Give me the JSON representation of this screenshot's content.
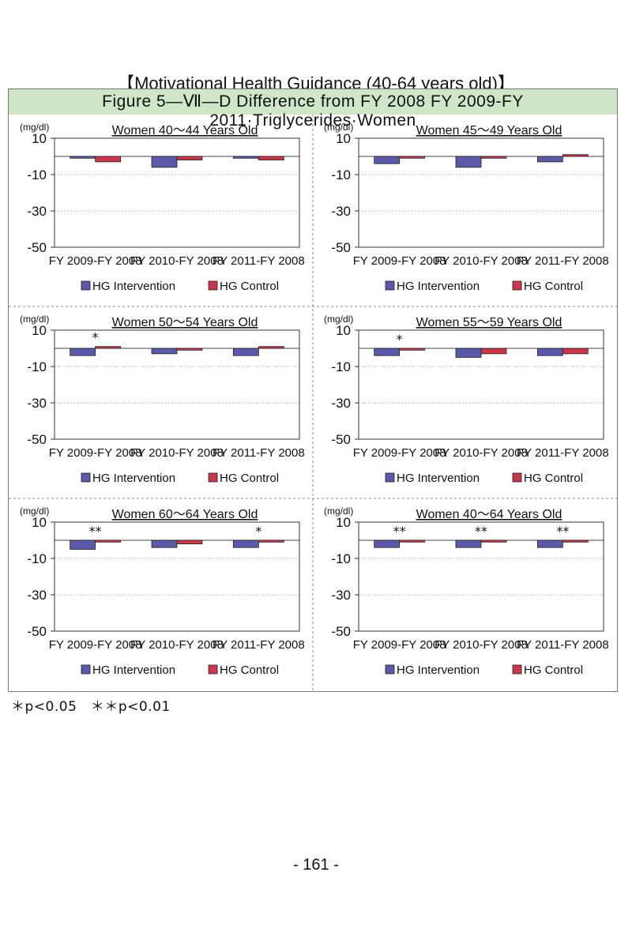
{
  "page_title": "【Motivational Health Guidance (40-64 years old)】",
  "figure_title": "Figure 5—Ⅶ—D  Difference from FY 2008 FY 2009-FY 2011·Triglycerides·Women",
  "footnote": "＊p<0.05　＊＊p<0.01",
  "page_number": "- 161 -",
  "colors": {
    "intervention": "#5a5aa8",
    "control": "#c8384a",
    "figure_header": "#cfe6c9"
  },
  "chart_data": [
    {
      "type": "bar",
      "title": "Women 40～44 Years Old",
      "unit_label": "(mg/dl)",
      "categories": [
        "FY 2009-FY 2008",
        "FY 2010-FY 2008",
        "FY 2011-FY 2008"
      ],
      "series": [
        {
          "name": "HG Intervention",
          "values": [
            -1,
            -6,
            -1
          ]
        },
        {
          "name": "HG Control",
          "values": [
            -3,
            -2,
            -2
          ]
        }
      ],
      "significance": [
        "",
        "",
        ""
      ],
      "ylim": [
        -50,
        10
      ],
      "yticks": [
        10,
        -10,
        -30,
        -50
      ],
      "grid": true,
      "legend_position": "bottom"
    },
    {
      "type": "bar",
      "title": "Women 45～49 Years Old",
      "unit_label": "(mg/dl)",
      "categories": [
        "FY 2009-FY 2008",
        "FY 2010-FY 2008",
        "FY 2011-FY 2008"
      ],
      "series": [
        {
          "name": "HG Intervention",
          "values": [
            -4,
            -6,
            -3
          ]
        },
        {
          "name": "HG Control",
          "values": [
            -1,
            -1,
            1
          ]
        }
      ],
      "significance": [
        "",
        "",
        ""
      ],
      "ylim": [
        -50,
        10
      ],
      "yticks": [
        10,
        -10,
        -30,
        -50
      ],
      "grid": true,
      "legend_position": "bottom"
    },
    {
      "type": "bar",
      "title": "Women 50～54 Years Old",
      "unit_label": "(mg/dl)",
      "categories": [
        "FY 2009-FY 2008",
        "FY 2010-FY 2008",
        "FY 2011-FY 2008"
      ],
      "series": [
        {
          "name": "HG Intervention",
          "values": [
            -4,
            -3,
            -4
          ]
        },
        {
          "name": "HG Control",
          "values": [
            1,
            -1,
            1
          ]
        }
      ],
      "significance": [
        "*",
        "",
        ""
      ],
      "ylim": [
        -50,
        10
      ],
      "yticks": [
        10,
        -10,
        -30,
        -50
      ],
      "grid": true,
      "legend_position": "bottom"
    },
    {
      "type": "bar",
      "title": "Women 55～59 Years Old",
      "unit_label": "(mg/dl)",
      "categories": [
        "FY 2009-FY 2008",
        "FY 2010-FY 2008",
        "FY 2011-FY 2008"
      ],
      "series": [
        {
          "name": "HG Intervention",
          "values": [
            -4,
            -5,
            -4
          ]
        },
        {
          "name": "HG Control",
          "values": [
            -1,
            -3,
            -3
          ]
        }
      ],
      "significance": [
        "*",
        "",
        ""
      ],
      "ylim": [
        -50,
        10
      ],
      "yticks": [
        10,
        -10,
        -30,
        -50
      ],
      "grid": true,
      "legend_position": "bottom"
    },
    {
      "type": "bar",
      "title": "Women 60～64 Years Old",
      "unit_label": "(mg/dl)",
      "categories": [
        "FY 2009-FY 2008",
        "FY 2010-FY 2008",
        "FY 2011-FY 2008"
      ],
      "series": [
        {
          "name": "HG Intervention",
          "values": [
            -5,
            -4,
            -4
          ]
        },
        {
          "name": "HG Control",
          "values": [
            -1,
            -2,
            -1
          ]
        }
      ],
      "significance": [
        "**",
        "",
        "*"
      ],
      "ylim": [
        -50,
        10
      ],
      "yticks": [
        10,
        -10,
        -30,
        -50
      ],
      "grid": true,
      "legend_position": "bottom"
    },
    {
      "type": "bar",
      "title": "Women 40～64 Years Old",
      "unit_label": "(mg/dl)",
      "categories": [
        "FY 2009-FY 2008",
        "FY 2010-FY 2008",
        "FY 2011-FY 2008"
      ],
      "series": [
        {
          "name": "HG Intervention",
          "values": [
            -4,
            -4,
            -4
          ]
        },
        {
          "name": "HG Control",
          "values": [
            -1,
            -1,
            -1
          ]
        }
      ],
      "significance": [
        "**",
        "**",
        "**"
      ],
      "ylim": [
        -50,
        10
      ],
      "yticks": [
        10,
        -10,
        -30,
        -50
      ],
      "grid": true,
      "legend_position": "bottom"
    }
  ]
}
